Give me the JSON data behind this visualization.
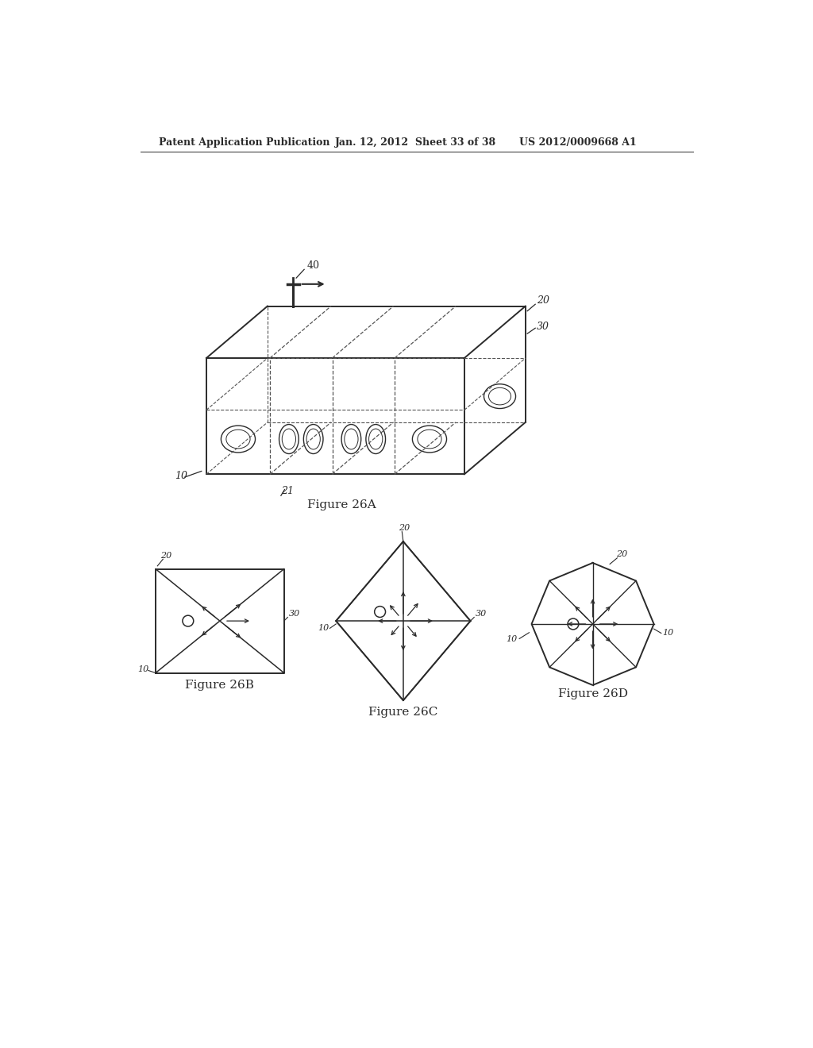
{
  "bg_color": "#ffffff",
  "header_text": "Patent Application Publication",
  "header_date": "Jan. 12, 2012  Sheet 33 of 38",
  "header_patent": "US 2012/0009668 A1",
  "fig26a_label": "Figure 26A",
  "fig26b_label": "Figure 26B",
  "fig26c_label": "Figure 26C",
  "fig26d_label": "Figure 26D",
  "line_color": "#2a2a2a",
  "dashed_color": "#555555"
}
